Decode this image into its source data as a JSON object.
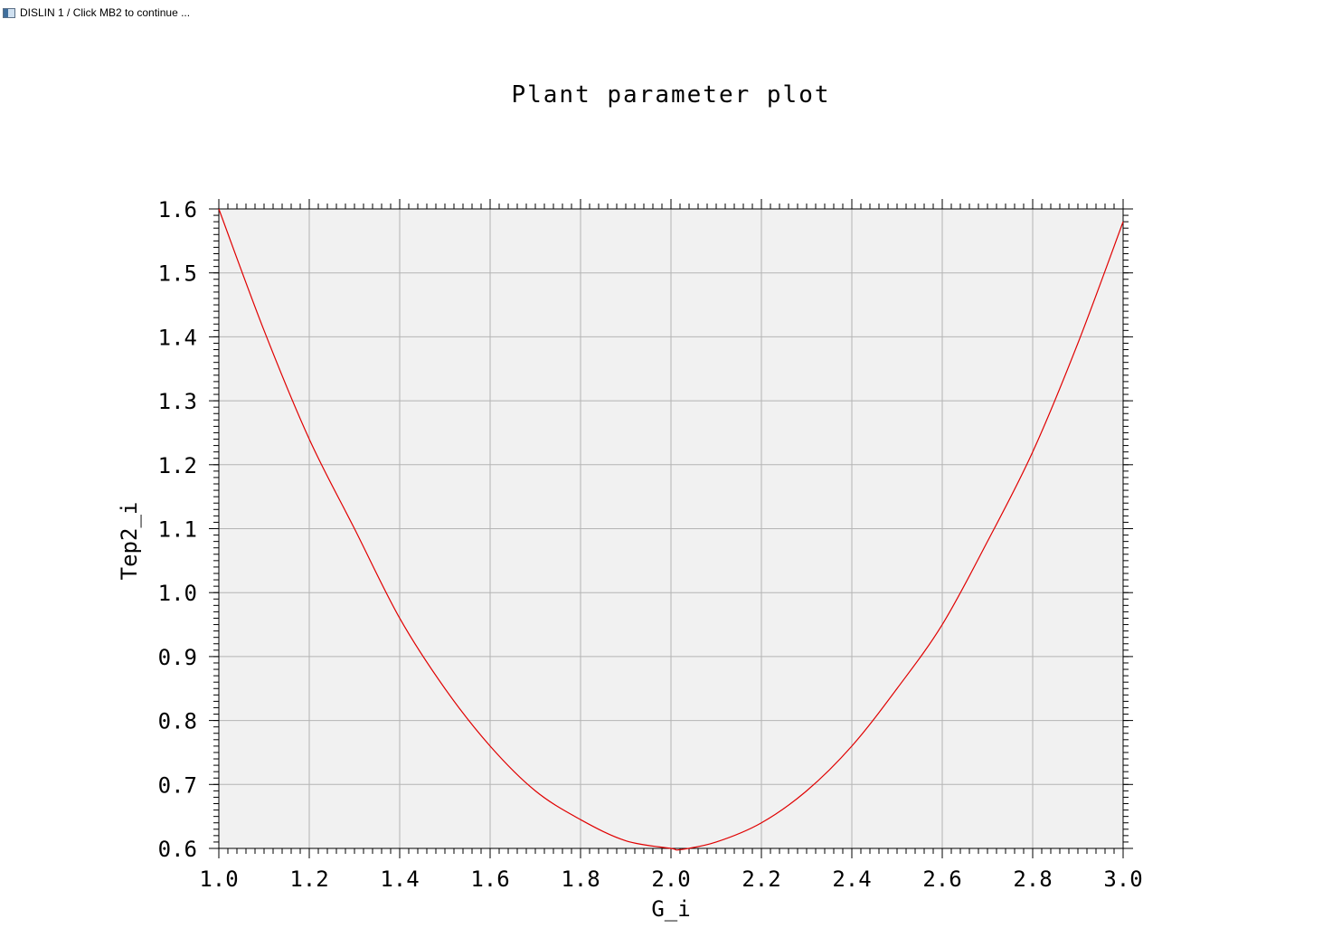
{
  "window": {
    "title": "DISLIN 1 / Click MB2 to continue ..."
  },
  "chart_data": {
    "type": "line",
    "title": "Plant parameter plot",
    "xlabel": "G_i",
    "ylabel": "Tep2_i",
    "xlim": [
      1.0,
      3.0
    ],
    "ylim": [
      0.6,
      1.6
    ],
    "x_ticks": [
      "1.0",
      "1.2",
      "1.4",
      "1.6",
      "1.8",
      "2.0",
      "2.2",
      "2.4",
      "2.6",
      "2.8",
      "3.0"
    ],
    "y_ticks": [
      "0.6",
      "0.7",
      "0.8",
      "0.9",
      "1.0",
      "1.1",
      "1.2",
      "1.3",
      "1.4",
      "1.5",
      "1.6"
    ],
    "grid": true,
    "series": [
      {
        "color": "#e00000",
        "x": [
          1.0,
          1.1,
          1.2,
          1.3,
          1.4,
          1.5,
          1.6,
          1.7,
          1.8,
          1.9,
          2.0,
          2.02,
          2.1,
          2.2,
          2.3,
          2.4,
          2.5,
          2.6,
          2.7,
          2.8,
          2.9,
          3.0
        ],
        "y": [
          1.6,
          1.41,
          1.24,
          1.1,
          0.96,
          0.85,
          0.76,
          0.69,
          0.645,
          0.612,
          0.6,
          0.598,
          0.61,
          0.64,
          0.69,
          0.76,
          0.85,
          0.95,
          1.08,
          1.22,
          1.39,
          1.58
        ]
      }
    ],
    "colors": {
      "plot_background": "#f1f1f1",
      "grid": "#b4b4b4",
      "axis": "#000000"
    }
  }
}
